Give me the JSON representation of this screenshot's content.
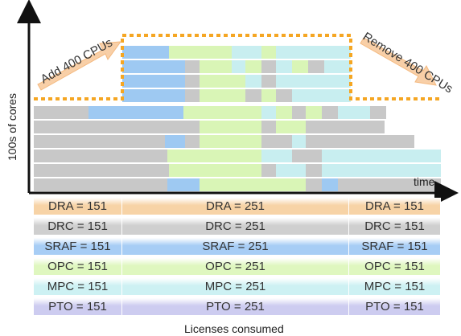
{
  "axis": {
    "y_label": "100s of cores",
    "x_label": "time"
  },
  "annotations": {
    "add": "Add 400 CPUs",
    "remove": "Remove 400 CPUs"
  },
  "colors": {
    "gray": "#c8c8c8",
    "blue": "#9ec9f2",
    "green": "#d9f5b6",
    "cyan": "#c8eef0",
    "orange_dash": "#f5a623",
    "arrow": "#f7c79a",
    "axis": "#111111"
  },
  "licenses": {
    "caption": "Licenses consumed",
    "rows": [
      {
        "name": "DRA",
        "values": [
          "DRA = 151",
          "DRA = 251",
          "DRA = 151"
        ],
        "color": "#f7d3a6"
      },
      {
        "name": "DRC",
        "values": [
          "DRC = 151",
          "DRC = 251",
          "DRC = 151"
        ],
        "color": "#cfcfcf"
      },
      {
        "name": "SRAF",
        "values": [
          "SRAF = 151",
          "SRAF = 251",
          "SRAF = 151"
        ],
        "color": "#a7cdf5"
      },
      {
        "name": "OPC",
        "values": [
          "OPC = 151",
          "OPC = 251",
          "OPC = 151"
        ],
        "color": "#dff7bf"
      },
      {
        "name": "MPC",
        "values": [
          "MPC = 151",
          "MPC = 251",
          "MPC = 151"
        ],
        "color": "#cdf1f3"
      },
      {
        "name": "PTO",
        "values": [
          "PTO = 151",
          "PTO = 251",
          "PTO = 151"
        ],
        "color": "#cdccf0"
      }
    ]
  }
}
